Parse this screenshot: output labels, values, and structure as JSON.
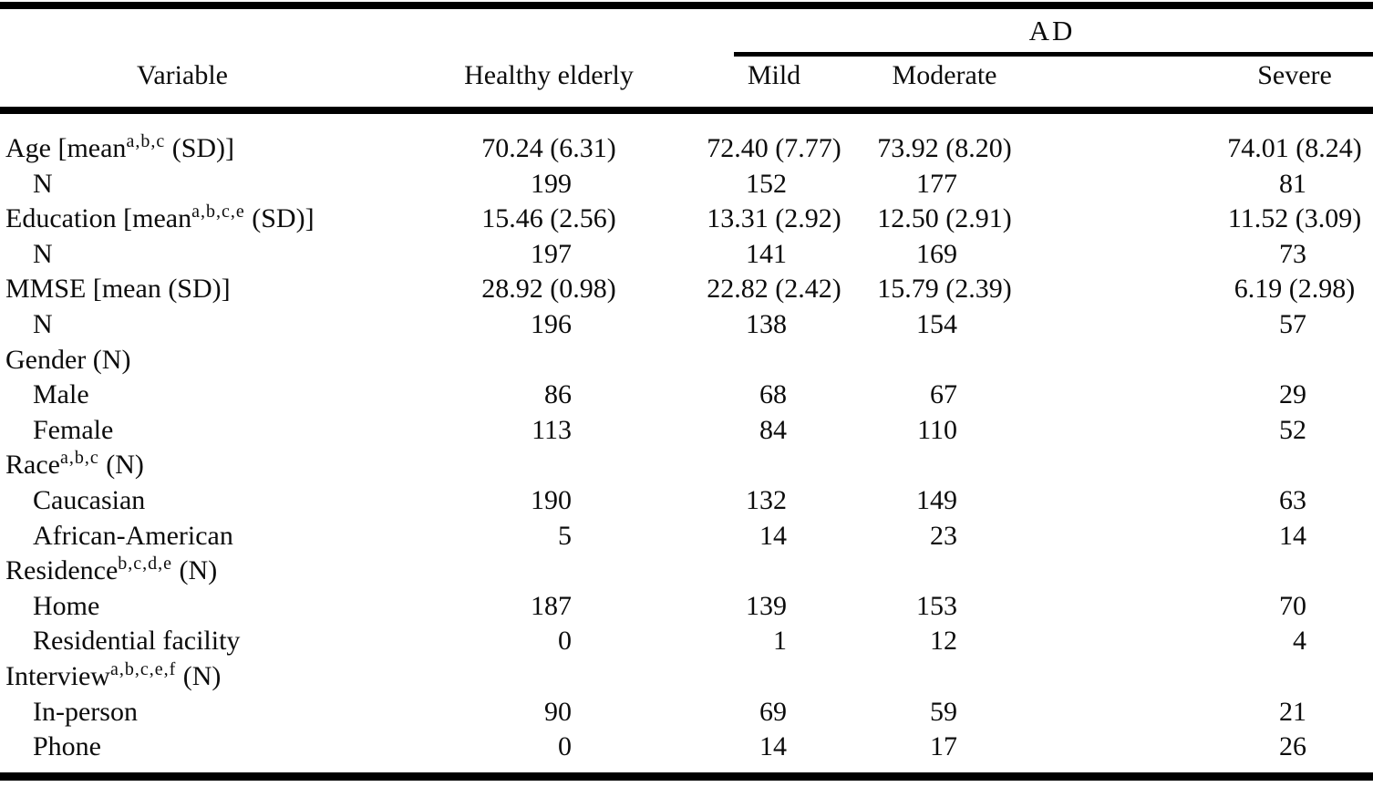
{
  "table": {
    "span_header": "AD",
    "columns": [
      "Variable",
      "Healthy elderly",
      "Mild",
      "Moderate",
      "Severe"
    ],
    "rows": [
      {
        "pre": "Age [mean",
        "sup": "a,b,c",
        "post": " (SD)]",
        "indent": false,
        "align": "center",
        "values": [
          "70.24 (6.31)",
          "72.40 (7.77)",
          "73.92 (8.20)",
          "74.01 (8.24)"
        ]
      },
      {
        "pre": "N",
        "sup": "",
        "post": "",
        "indent": true,
        "align": "right",
        "values": [
          "199",
          "152",
          "177",
          "81"
        ]
      },
      {
        "pre": "Education [mean",
        "sup": "a,b,c,e",
        "post": " (SD)]",
        "indent": false,
        "align": "center",
        "values": [
          "15.46 (2.56)",
          "13.31 (2.92)",
          "12.50 (2.91)",
          "11.52 (3.09)"
        ]
      },
      {
        "pre": "N",
        "sup": "",
        "post": "",
        "indent": true,
        "align": "right",
        "values": [
          "197",
          "141",
          "169",
          "73"
        ]
      },
      {
        "pre": "MMSE [mean (SD)]",
        "sup": "",
        "post": "",
        "indent": false,
        "align": "center",
        "values": [
          "28.92 (0.98)",
          "22.82 (2.42)",
          "15.79 (2.39)",
          "6.19 (2.98)"
        ]
      },
      {
        "pre": "N",
        "sup": "",
        "post": "",
        "indent": true,
        "align": "right",
        "values": [
          "196",
          "138",
          "154",
          "57"
        ]
      },
      {
        "pre": "Gender (N)",
        "sup": "",
        "post": "",
        "indent": false,
        "align": "right",
        "values": []
      },
      {
        "pre": "Male",
        "sup": "",
        "post": "",
        "indent": true,
        "align": "right",
        "values": [
          "86",
          "68",
          "67",
          "29"
        ]
      },
      {
        "pre": "Female",
        "sup": "",
        "post": "",
        "indent": true,
        "align": "right",
        "values": [
          "113",
          "84",
          "110",
          "52"
        ]
      },
      {
        "pre": "Race",
        "sup": "a,b,c",
        "post": " (N)",
        "indent": false,
        "align": "right",
        "values": []
      },
      {
        "pre": "Caucasian",
        "sup": "",
        "post": "",
        "indent": true,
        "align": "right",
        "values": [
          "190",
          "132",
          "149",
          "63"
        ]
      },
      {
        "pre": "African-American",
        "sup": "",
        "post": "",
        "indent": true,
        "align": "right",
        "values": [
          "5",
          "14",
          "23",
          "14"
        ]
      },
      {
        "pre": "Residence",
        "sup": "b,c,d,e",
        "post": " (N)",
        "indent": false,
        "align": "right",
        "values": []
      },
      {
        "pre": "Home",
        "sup": "",
        "post": "",
        "indent": true,
        "align": "right",
        "values": [
          "187",
          "139",
          "153",
          "70"
        ]
      },
      {
        "pre": "Residential facility",
        "sup": "",
        "post": "",
        "indent": true,
        "align": "right",
        "values": [
          "0",
          "1",
          "12",
          "4"
        ]
      },
      {
        "pre": "Interview",
        "sup": "a,b,c,e,f",
        "post": " (N)",
        "indent": false,
        "align": "right",
        "values": []
      },
      {
        "pre": "In-person",
        "sup": "",
        "post": "",
        "indent": true,
        "align": "right",
        "values": [
          "90",
          "69",
          "59",
          "21"
        ]
      },
      {
        "pre": "Phone",
        "sup": "",
        "post": "",
        "indent": true,
        "align": "right",
        "values": [
          "0",
          "14",
          "17",
          "26"
        ]
      }
    ]
  }
}
